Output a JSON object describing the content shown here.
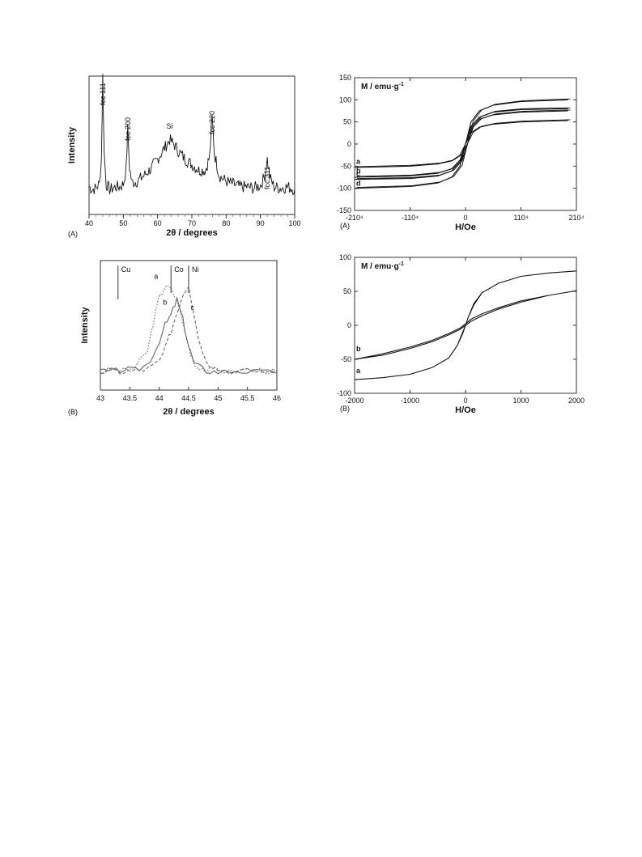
{
  "chart_data": [
    {
      "id": "xrd_a",
      "type": "line",
      "panel_label": "(A)",
      "xlabel": "2θ / degrees",
      "ylabel": "Intensity",
      "xlim": [
        40,
        100
      ],
      "xticks": [
        "40",
        "50",
        "60",
        "70",
        "80",
        "90",
        "100"
      ],
      "ylim": [
        0,
        1
      ],
      "series": [
        {
          "values": [
            [
              40,
              0.2
            ],
            [
              41,
              0.18
            ],
            [
              42,
              0.19
            ],
            [
              43,
              0.22
            ],
            [
              43.6,
              0.4
            ],
            [
              44.0,
              1.0
            ],
            [
              44.4,
              0.45
            ],
            [
              45,
              0.22
            ],
            [
              46,
              0.18
            ],
            [
              47,
              0.19
            ],
            [
              48,
              0.2
            ],
            [
              49,
              0.2
            ],
            [
              50,
              0.22
            ],
            [
              50.8,
              0.32
            ],
            [
              51.3,
              0.62
            ],
            [
              51.8,
              0.34
            ],
            [
              52.5,
              0.23
            ],
            [
              54,
              0.24
            ],
            [
              56,
              0.28
            ],
            [
              58,
              0.33
            ],
            [
              60,
              0.4
            ],
            [
              62,
              0.48
            ],
            [
              63.5,
              0.54
            ],
            [
              65,
              0.5
            ],
            [
              66,
              0.46
            ],
            [
              68,
              0.4
            ],
            [
              70,
              0.36
            ],
            [
              72,
              0.32
            ],
            [
              74,
              0.32
            ],
            [
              75.2,
              0.42
            ],
            [
              75.9,
              0.7
            ],
            [
              76.6,
              0.44
            ],
            [
              78,
              0.28
            ],
            [
              80,
              0.24
            ],
            [
              82,
              0.22
            ],
            [
              84,
              0.2
            ],
            [
              86,
              0.2
            ],
            [
              88,
              0.19
            ],
            [
              90,
              0.21
            ],
            [
              91.3,
              0.28
            ],
            [
              92.0,
              0.4
            ],
            [
              92.7,
              0.27
            ],
            [
              94,
              0.2
            ],
            [
              96,
              0.19
            ],
            [
              98,
              0.2
            ],
            [
              100,
              0.18
            ]
          ]
        }
      ],
      "annotations": [
        {
          "text": "fcc 111",
          "x": 44.0
        },
        {
          "text": "fcc 200",
          "x": 51.3
        },
        {
          "text": "Si",
          "x": 63.5
        },
        {
          "text": "fcc 220",
          "x": 75.9
        },
        {
          "text": "fcc 311",
          "x": 92.0
        }
      ]
    },
    {
      "id": "xrd_b",
      "type": "line",
      "panel_label": "(B)",
      "xlabel": "2θ / degrees",
      "ylabel": "Intensity",
      "xlim": [
        43,
        46
      ],
      "xticks": [
        "43",
        "43.5",
        "44",
        "44.5",
        "45",
        "45.5",
        "46"
      ],
      "ylim": [
        0,
        1
      ],
      "reference_lines": [
        {
          "text": "Cu",
          "x": 43.3
        },
        {
          "text": "Co",
          "x": 44.2
        },
        {
          "text": "Ni",
          "x": 44.5
        }
      ],
      "series": [
        {
          "name": "a",
          "style": "dotted",
          "values": [
            [
              43.0,
              0.14
            ],
            [
              43.2,
              0.16
            ],
            [
              43.4,
              0.15
            ],
            [
              43.6,
              0.18
            ],
            [
              43.8,
              0.3
            ],
            [
              43.9,
              0.52
            ],
            [
              44.0,
              0.72
            ],
            [
              44.1,
              0.8
            ],
            [
              44.2,
              0.78
            ],
            [
              44.3,
              0.7
            ],
            [
              44.4,
              0.52
            ],
            [
              44.5,
              0.34
            ],
            [
              44.6,
              0.2
            ],
            [
              44.8,
              0.15
            ],
            [
              45.0,
              0.16
            ],
            [
              45.2,
              0.14
            ],
            [
              45.5,
              0.16
            ],
            [
              45.8,
              0.15
            ],
            [
              46.0,
              0.14
            ]
          ]
        },
        {
          "name": "b",
          "style": "solid",
          "values": [
            [
              43.0,
              0.15
            ],
            [
              43.2,
              0.14
            ],
            [
              43.4,
              0.16
            ],
            [
              43.6,
              0.15
            ],
            [
              43.8,
              0.2
            ],
            [
              43.95,
              0.32
            ],
            [
              44.1,
              0.5
            ],
            [
              44.2,
              0.58
            ],
            [
              44.3,
              0.7
            ],
            [
              44.4,
              0.55
            ],
            [
              44.5,
              0.34
            ],
            [
              44.6,
              0.2
            ],
            [
              44.8,
              0.15
            ],
            [
              45.0,
              0.14
            ],
            [
              45.3,
              0.15
            ],
            [
              45.6,
              0.14
            ],
            [
              46.0,
              0.13
            ]
          ]
        },
        {
          "name": "c",
          "style": "dashed",
          "values": [
            [
              43.0,
              0.14
            ],
            [
              43.2,
              0.15
            ],
            [
              43.4,
              0.14
            ],
            [
              43.6,
              0.15
            ],
            [
              43.8,
              0.16
            ],
            [
              44.0,
              0.22
            ],
            [
              44.1,
              0.32
            ],
            [
              44.2,
              0.45
            ],
            [
              44.3,
              0.6
            ],
            [
              44.4,
              0.74
            ],
            [
              44.5,
              0.82
            ],
            [
              44.6,
              0.56
            ],
            [
              44.7,
              0.34
            ],
            [
              44.85,
              0.2
            ],
            [
              45.0,
              0.16
            ],
            [
              45.3,
              0.14
            ],
            [
              45.6,
              0.15
            ],
            [
              46.0,
              0.13
            ]
          ]
        }
      ]
    },
    {
      "id": "mag_a",
      "type": "line",
      "panel_label": "(A)",
      "xlabel": "H/Oe",
      "ylabel": "M / emu·g",
      "ylabel_sup": "-1",
      "xlim": [
        -20000,
        20000
      ],
      "xticks": [
        {
          "value": -20000,
          "text": "-210⁴"
        },
        {
          "value": -10000,
          "text": "-110⁴"
        },
        {
          "value": 0,
          "text": "0"
        },
        {
          "value": 10000,
          "text": "110⁴"
        },
        {
          "value": 20000,
          "text": "210⁴"
        }
      ],
      "ylim": [
        -150,
        150
      ],
      "yticks": [
        "-150",
        "-100",
        "-50",
        "0",
        "50",
        "100",
        "150"
      ],
      "series": [
        {
          "name": "a",
          "values": [
            [
              -20000,
              -53
            ],
            [
              -10000,
              -50
            ],
            [
              -5000,
              -45
            ],
            [
              -2500,
              -38
            ],
            [
              -1000,
              -25
            ],
            [
              0,
              0
            ],
            [
              1000,
              25
            ],
            [
              2500,
              38
            ],
            [
              5000,
              45
            ],
            [
              10000,
              50
            ],
            [
              18500,
              53
            ]
          ]
        },
        {
          "name": "b",
          "values": [
            [
              -20000,
              -75
            ],
            [
              -10000,
              -72
            ],
            [
              -5000,
              -66
            ],
            [
              -2500,
              -56
            ],
            [
              -1000,
              -36
            ],
            [
              0,
              0
            ],
            [
              1000,
              36
            ],
            [
              2500,
              56
            ],
            [
              5000,
              66
            ],
            [
              10000,
              72
            ],
            [
              18500,
              75
            ]
          ]
        },
        {
          "name": "c",
          "values": [
            [
              -20000,
              -80
            ],
            [
              -10000,
              -78
            ],
            [
              -5000,
              -72
            ],
            [
              -2500,
              -61
            ],
            [
              -1000,
              -40
            ],
            [
              0,
              0
            ],
            [
              1000,
              40
            ],
            [
              2500,
              61
            ],
            [
              5000,
              72
            ],
            [
              10000,
              78
            ],
            [
              18500,
              80
            ]
          ]
        },
        {
          "name": "d",
          "values": [
            [
              -20000,
              -100
            ],
            [
              -10000,
              -96
            ],
            [
              -5000,
              -88
            ],
            [
              -2500,
              -75
            ],
            [
              -1000,
              -50
            ],
            [
              0,
              0
            ],
            [
              1000,
              50
            ],
            [
              2500,
              75
            ],
            [
              5000,
              88
            ],
            [
              10000,
              96
            ],
            [
              18500,
              100
            ]
          ]
        }
      ]
    },
    {
      "id": "mag_b",
      "type": "line",
      "panel_label": "(B)",
      "xlabel": "H/Oe",
      "ylabel": "M / emu·g",
      "ylabel_sup": "-1",
      "xlim": [
        -2000,
        2000
      ],
      "xticks": [
        {
          "value": -2000,
          "text": "-2000"
        },
        {
          "value": -1000,
          "text": "-1000"
        },
        {
          "value": 0,
          "text": "0"
        },
        {
          "value": 1000,
          "text": "1000"
        },
        {
          "value": 2000,
          "text": "2000"
        }
      ],
      "ylim": [
        -100,
        100
      ],
      "yticks": [
        "-100",
        "-50",
        "0",
        "50",
        "100"
      ],
      "series": [
        {
          "name": "a",
          "values": [
            [
              -2000,
              -80
            ],
            [
              -1500,
              -77
            ],
            [
              -1000,
              -72
            ],
            [
              -600,
              -62
            ],
            [
              -300,
              -48
            ],
            [
              -150,
              -30
            ],
            [
              -50,
              -10
            ],
            [
              0,
              0
            ],
            [
              50,
              12
            ],
            [
              150,
              30
            ],
            [
              300,
              48
            ],
            [
              600,
              62
            ],
            [
              1000,
              72
            ],
            [
              1500,
              77
            ],
            [
              2000,
              80
            ],
            [
              1500,
              77
            ],
            [
              1000,
              72
            ],
            [
              600,
              62
            ],
            [
              300,
              48
            ],
            [
              150,
              32
            ],
            [
              50,
              12
            ],
            [
              0,
              0
            ],
            [
              -50,
              -12
            ],
            [
              -150,
              -30
            ],
            [
              -300,
              -48
            ],
            [
              -600,
              -62
            ],
            [
              -1000,
              -72
            ],
            [
              -1500,
              -77
            ],
            [
              -2000,
              -80
            ]
          ]
        },
        {
          "name": "b",
          "values": [
            [
              -2000,
              -50
            ],
            [
              -1500,
              -44
            ],
            [
              -1000,
              -34
            ],
            [
              -600,
              -24
            ],
            [
              -300,
              -14
            ],
            [
              -100,
              -6
            ],
            [
              0,
              0
            ],
            [
              100,
              6
            ],
            [
              300,
              14
            ],
            [
              600,
              24
            ],
            [
              1000,
              34
            ],
            [
              1500,
              44
            ],
            [
              2000,
              51
            ],
            [
              1500,
              44
            ],
            [
              1000,
              36
            ],
            [
              600,
              26
            ],
            [
              300,
              17
            ],
            [
              100,
              9
            ],
            [
              0,
              2
            ],
            [
              -100,
              -4
            ],
            [
              -300,
              -12
            ],
            [
              -600,
              -22
            ],
            [
              -1000,
              -32
            ],
            [
              -1500,
              -42
            ],
            [
              -2000,
              -50
            ]
          ]
        }
      ]
    }
  ]
}
